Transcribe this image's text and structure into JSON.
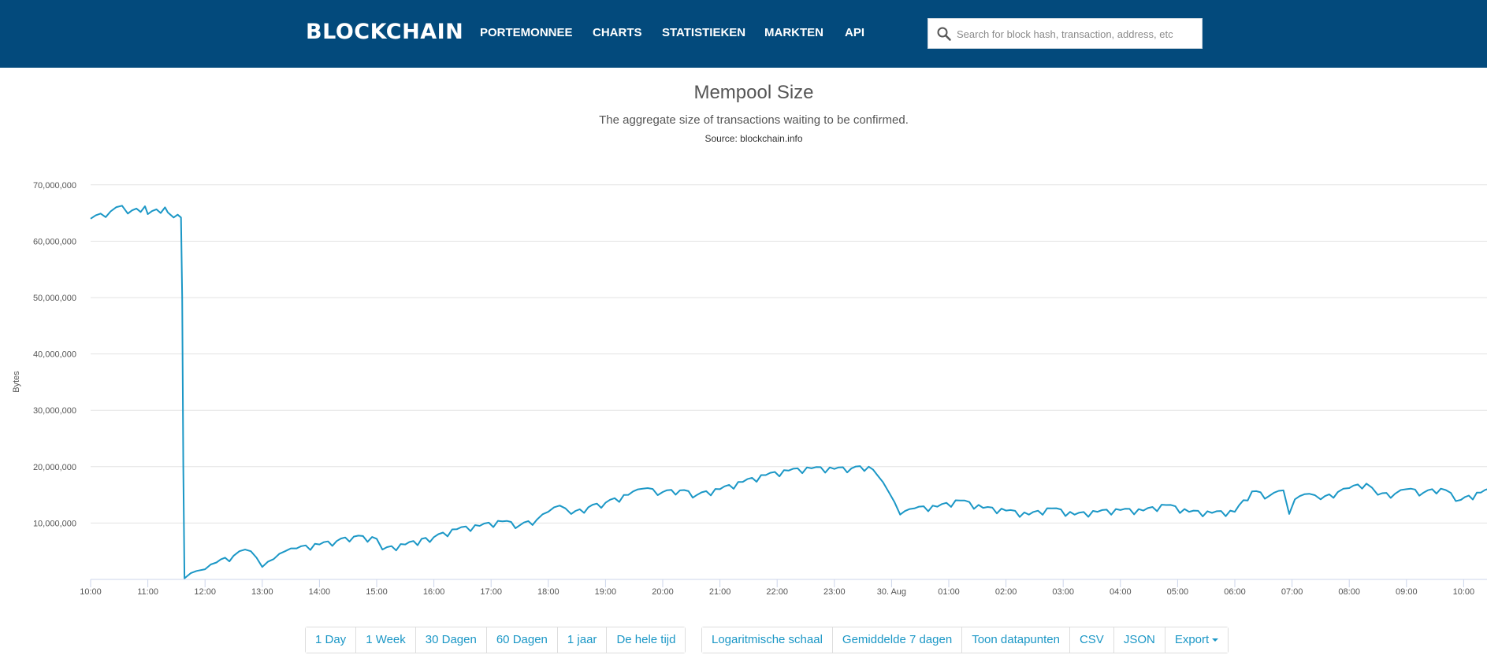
{
  "header": {
    "brand": "BLOCKCHAIN",
    "nav": [
      "PORTEMONNEE",
      "CHARTS",
      "STATISTIEKEN",
      "MARKTEN",
      "API"
    ],
    "search_placeholder": "Search for block hash, transaction, address, etc"
  },
  "colors": {
    "header_bg": "#034a7c",
    "series": "#1b97c6",
    "button_text": "#1b97c6"
  },
  "chart_data": {
    "type": "line",
    "title": "Mempool Size",
    "subtitle": "The aggregate size of transactions waiting to be confirmed.",
    "source": "Source: blockchain.info",
    "xlabel": "",
    "ylabel": "Bytes",
    "x_tick_labels": [
      "10:00",
      "11:00",
      "12:00",
      "13:00",
      "14:00",
      "15:00",
      "16:00",
      "17:00",
      "18:00",
      "19:00",
      "20:00",
      "21:00",
      "22:00",
      "23:00",
      "30. Aug",
      "01:00",
      "02:00",
      "03:00",
      "04:00",
      "05:00",
      "06:00",
      "07:00",
      "08:00",
      "09:00",
      "10:00"
    ],
    "y_tick_labels": [
      "10,000,000",
      "20,000,000",
      "30,000,000",
      "40,000,000",
      "50,000,000",
      "60,000,000",
      "70,000,000"
    ],
    "y_ticks": [
      10000000,
      20000000,
      30000000,
      40000000,
      50000000,
      60000000,
      70000000
    ],
    "ylim": [
      0,
      70000000
    ],
    "grid": true,
    "x_unit": "hours since 10:00",
    "series": [
      {
        "values": [
          [
            0.0,
            64000000
          ],
          [
            0.35,
            65300000
          ],
          [
            0.55,
            66300000
          ],
          [
            0.65,
            64900000
          ],
          [
            0.95,
            66200000
          ],
          [
            1.0,
            64800000
          ],
          [
            1.3,
            66000000
          ],
          [
            1.35,
            65100000
          ],
          [
            1.45,
            64200000
          ],
          [
            1.52,
            64700000
          ],
          [
            1.58,
            64200000
          ],
          [
            1.6,
            50000000
          ],
          [
            1.62,
            20000000
          ],
          [
            1.64,
            200000
          ],
          [
            1.75,
            1100000
          ],
          [
            1.85,
            1500000
          ],
          [
            2.0,
            1800000
          ],
          [
            2.2,
            3000000
          ],
          [
            2.5,
            4200000
          ],
          [
            2.7,
            5300000
          ],
          [
            2.8,
            5000000
          ],
          [
            3.0,
            2200000
          ],
          [
            3.2,
            3600000
          ],
          [
            3.4,
            5000000
          ],
          [
            3.6,
            5500000
          ],
          [
            4.0,
            6200000
          ],
          [
            4.3,
            6800000
          ],
          [
            4.6,
            7600000
          ],
          [
            5.0,
            7200000
          ],
          [
            5.1,
            5300000
          ],
          [
            5.5,
            6200000
          ],
          [
            6.0,
            7500000
          ],
          [
            6.4,
            8900000
          ],
          [
            6.8,
            9500000
          ],
          [
            7.2,
            10300000
          ],
          [
            7.5,
            9600000
          ],
          [
            7.8,
            10600000
          ],
          [
            8.0,
            12000000
          ],
          [
            8.2,
            13100000
          ],
          [
            8.4,
            11600000
          ],
          [
            8.7,
            12800000
          ],
          [
            9.0,
            13600000
          ],
          [
            9.4,
            15000000
          ],
          [
            9.65,
            16100000
          ],
          [
            10.0,
            15500000
          ],
          [
            10.3,
            15800000
          ],
          [
            10.6,
            15000000
          ],
          [
            11.0,
            16000000
          ],
          [
            11.4,
            17300000
          ],
          [
            11.8,
            18500000
          ],
          [
            12.2,
            19300000
          ],
          [
            12.6,
            19700000
          ],
          [
            13.0,
            19600000
          ],
          [
            13.3,
            19700000
          ],
          [
            13.6,
            20000000
          ],
          [
            13.75,
            18500000
          ],
          [
            13.95,
            15500000
          ],
          [
            14.15,
            11500000
          ],
          [
            14.4,
            12600000
          ],
          [
            14.8,
            12900000
          ],
          [
            15.2,
            14000000
          ],
          [
            15.6,
            12700000
          ],
          [
            16.0,
            12200000
          ],
          [
            16.4,
            11500000
          ],
          [
            16.8,
            12600000
          ],
          [
            17.2,
            11500000
          ],
          [
            17.6,
            12000000
          ],
          [
            18.0,
            12300000
          ],
          [
            18.4,
            12200000
          ],
          [
            18.8,
            13200000
          ],
          [
            19.2,
            12000000
          ],
          [
            19.6,
            11800000
          ],
          [
            20.0,
            12000000
          ],
          [
            20.3,
            15600000
          ],
          [
            20.6,
            14800000
          ],
          [
            20.85,
            15800000
          ],
          [
            20.95,
            11600000
          ],
          [
            21.05,
            14200000
          ],
          [
            21.3,
            15200000
          ],
          [
            21.5,
            14200000
          ],
          [
            21.8,
            15500000
          ],
          [
            22.0,
            16200000
          ],
          [
            22.3,
            17000000
          ],
          [
            22.5,
            15000000
          ],
          [
            22.8,
            15200000
          ],
          [
            23.0,
            16000000
          ],
          [
            23.3,
            15400000
          ],
          [
            23.6,
            16100000
          ],
          [
            23.95,
            14100000
          ],
          [
            24.3,
            15400000
          ],
          [
            24.6,
            16300000
          ],
          [
            24.7,
            16300000
          ]
        ]
      }
    ]
  },
  "controls": {
    "range_buttons": [
      "1 Day",
      "1 Week",
      "30 Dagen",
      "60 Dagen",
      "1 jaar",
      "De hele tijd"
    ],
    "option_buttons": [
      "Logaritmische schaal",
      "Gemiddelde 7 dagen",
      "Toon datapunten",
      "CSV",
      "JSON"
    ],
    "export_label": "Export"
  }
}
